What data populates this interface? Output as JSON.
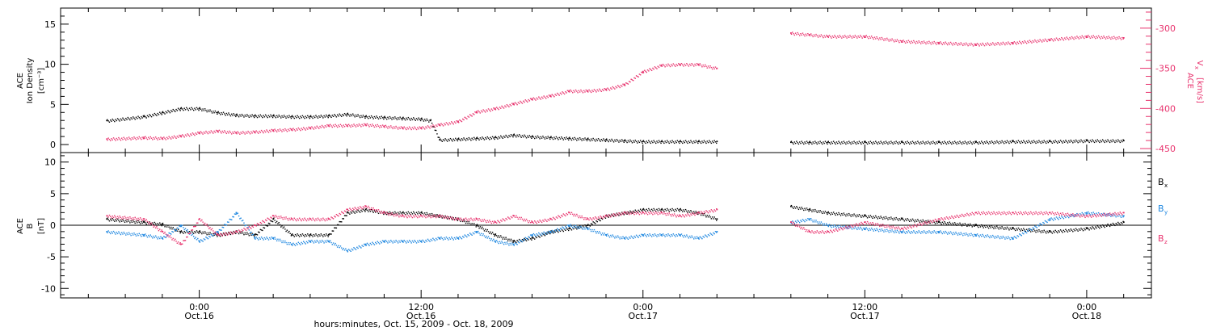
{
  "colors": {
    "black": "#000000",
    "pink": "#e8336e",
    "blue": "#1e87e0"
  },
  "chart_data": [
    {
      "type": "scatter",
      "panel": "top",
      "ylabel_lines": [
        "ACE",
        "Ion Density",
        "[cm⁻³]"
      ],
      "ylim": [
        -1,
        17
      ],
      "yticks": [
        "0",
        "5",
        "10",
        "15"
      ],
      "yticks_values": [
        0,
        5,
        10,
        15
      ],
      "right_axis": {
        "label_lines": [
          "ACE",
          "V",
          "[km/s]"
        ],
        "label_sub": "x",
        "ylim": [
          -455,
          -275
        ],
        "yticks": [
          "-300",
          "-350",
          "-400",
          "-450"
        ],
        "yticks_values": [
          -300,
          -350,
          -400,
          -450
        ]
      },
      "series": [
        {
          "color_key": "black",
          "axis": "left",
          "points_hours": [
            -5,
            -3,
            -2,
            -1,
            0,
            1,
            2,
            3,
            4,
            5,
            6,
            7,
            8,
            9,
            10,
            11,
            12,
            12.5,
            13,
            14,
            15,
            16,
            17,
            18,
            19,
            20,
            21,
            22,
            23,
            24,
            25,
            26,
            27,
            28,
            32,
            33,
            34,
            36,
            38,
            40,
            42,
            44,
            46,
            48,
            50
          ],
          "values": [
            3.0,
            3.5,
            4.0,
            4.5,
            4.5,
            4.0,
            3.7,
            3.6,
            3.6,
            3.5,
            3.5,
            3.6,
            3.8,
            3.5,
            3.4,
            3.3,
            3.2,
            3.0,
            0.6,
            0.7,
            0.8,
            0.9,
            1.2,
            1.0,
            0.9,
            0.8,
            0.7,
            0.6,
            0.5,
            0.4,
            0.4,
            0.4,
            0.4,
            0.4,
            0.3,
            0.3,
            0.3,
            0.3,
            0.3,
            0.3,
            0.3,
            0.4,
            0.4,
            0.5,
            0.5
          ]
        },
        {
          "color_key": "pink",
          "axis": "right",
          "points_hours": [
            -5,
            -3,
            -2,
            -1,
            0,
            1,
            2,
            3,
            4,
            5,
            6,
            7,
            8,
            9,
            10,
            11,
            12,
            13,
            14,
            15,
            16,
            17,
            18,
            19,
            20,
            21,
            22,
            23,
            24,
            25,
            26,
            27,
            28,
            32,
            33,
            34,
            36,
            38,
            40,
            42,
            44,
            46,
            48,
            50
          ],
          "values": [
            -438,
            -436,
            -437,
            -434,
            -430,
            -428,
            -430,
            -429,
            -427,
            -426,
            -424,
            -421,
            -421,
            -420,
            -422,
            -424,
            -424,
            -420,
            -416,
            -404,
            -400,
            -394,
            -388,
            -384,
            -378,
            -378,
            -376,
            -370,
            -354,
            -346,
            -345,
            -345,
            -350,
            -306,
            -308,
            -310,
            -310,
            -316,
            -318,
            -320,
            -318,
            -314,
            -310,
            -312
          ]
        }
      ]
    },
    {
      "type": "scatter",
      "panel": "bottom",
      "ylabel_lines": [
        "ACE",
        "B",
        "[nT]"
      ],
      "ylim": [
        -11.5,
        11.5
      ],
      "yticks": [
        "-10",
        "-5",
        "0",
        "5",
        "10"
      ],
      "yticks_values": [
        -10,
        -5,
        0,
        5,
        10
      ],
      "zero_line": true,
      "legend": [
        "B",
        "B",
        "B"
      ],
      "legend_subs": [
        "x",
        "y",
        "z"
      ],
      "series": [
        {
          "color_key": "black",
          "points_hours": [
            -5,
            -3,
            -2,
            -1,
            0,
            1,
            2,
            3,
            4,
            5,
            6,
            7,
            8,
            9,
            10,
            11,
            12,
            13,
            14,
            15,
            16,
            17,
            18,
            19,
            20,
            21,
            22,
            23,
            24,
            25,
            26,
            27,
            28,
            32,
            33,
            34,
            36,
            38,
            40,
            42,
            44,
            46,
            48,
            50
          ],
          "values": [
            1.0,
            0.5,
            0.2,
            -1.0,
            -1.0,
            -1.5,
            -1.0,
            -1.5,
            1.0,
            -1.5,
            -1.5,
            -1.5,
            2.0,
            2.5,
            2.0,
            2.0,
            2.0,
            1.5,
            1.0,
            0.0,
            -1.5,
            -2.5,
            -2.0,
            -1.0,
            -0.5,
            0.0,
            1.5,
            2.0,
            2.5,
            2.5,
            2.5,
            2.0,
            1.0,
            3.0,
            2.5,
            2.0,
            1.5,
            1.0,
            0.5,
            0.0,
            -0.5,
            -1.0,
            -0.5,
            0.5
          ]
        },
        {
          "color_key": "blue",
          "points_hours": [
            -5,
            -3,
            -2,
            -1,
            0,
            1,
            2,
            3,
            4,
            5,
            6,
            7,
            8,
            9,
            10,
            11,
            12,
            13,
            14,
            15,
            16,
            17,
            18,
            19,
            20,
            21,
            22,
            23,
            24,
            25,
            26,
            27,
            28,
            32,
            33,
            34,
            36,
            38,
            40,
            42,
            44,
            46,
            48,
            50
          ],
          "values": [
            -1.0,
            -1.5,
            -2.0,
            0.0,
            -2.5,
            -1.0,
            2.0,
            -2.0,
            -2.0,
            -3.0,
            -2.5,
            -2.5,
            -4.0,
            -3.0,
            -2.5,
            -2.5,
            -2.5,
            -2.0,
            -2.0,
            -1.0,
            -2.5,
            -3.0,
            -1.5,
            -1.0,
            0.0,
            -0.5,
            -1.5,
            -2.0,
            -1.5,
            -1.5,
            -1.5,
            -2.0,
            -1.0,
            0.5,
            1.0,
            0.0,
            -0.5,
            -1.0,
            -1.0,
            -1.5,
            -2.0,
            1.0,
            2.0,
            1.5
          ]
        },
        {
          "color_key": "pink",
          "points_hours": [
            -5,
            -3,
            -2,
            -1,
            0,
            1,
            2,
            3,
            4,
            5,
            6,
            7,
            8,
            9,
            10,
            11,
            12,
            13,
            14,
            15,
            16,
            17,
            18,
            19,
            20,
            21,
            22,
            23,
            24,
            25,
            26,
            27,
            28,
            32,
            33,
            34,
            36,
            38,
            40,
            42,
            44,
            46,
            48,
            50
          ],
          "values": [
            1.5,
            1.0,
            -1.0,
            -3.0,
            1.0,
            -1.5,
            -1.0,
            0.0,
            1.5,
            1.0,
            1.0,
            1.0,
            2.5,
            3.0,
            2.0,
            1.5,
            1.5,
            1.5,
            1.0,
            1.0,
            0.5,
            1.5,
            0.5,
            1.0,
            2.0,
            1.0,
            1.5,
            2.0,
            2.0,
            2.0,
            1.5,
            2.0,
            2.5,
            0.5,
            -1.0,
            -1.0,
            0.5,
            -0.5,
            1.0,
            2.0,
            2.0,
            2.0,
            1.5,
            2.0
          ]
        }
      ]
    }
  ],
  "x_axis": {
    "range_hours": [
      -7.5,
      51.5
    ],
    "major_ticks": [
      {
        "hours": 0,
        "time": "0:00",
        "date": "Oct.16"
      },
      {
        "hours": 12,
        "time": "12:00",
        "date": "Oct.16"
      },
      {
        "hours": 24,
        "time": "0:00",
        "date": "Oct.17"
      },
      {
        "hours": 36,
        "time": "12:00",
        "date": "Oct.17"
      },
      {
        "hours": 48,
        "time": "0:00",
        "date": "Oct.18"
      }
    ],
    "title": "hours:minutes, Oct. 15, 2009 - Oct. 18, 2009"
  }
}
